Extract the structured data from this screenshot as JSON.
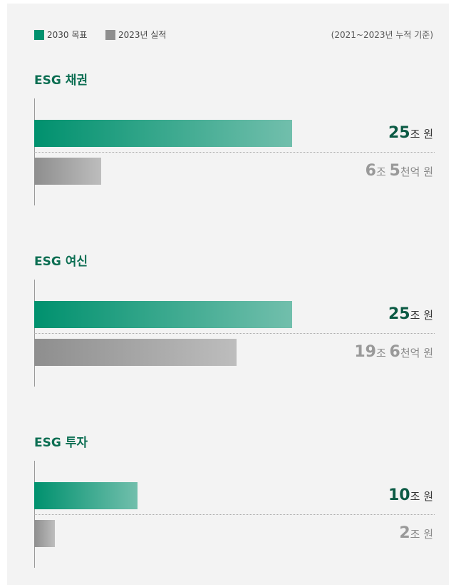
{
  "chart_data": {
    "type": "bar",
    "note": "(2021~2023년 누적 기준)",
    "categories": [
      "ESG 채권",
      "ESG 여신",
      "ESG 투자"
    ],
    "series": [
      {
        "name": "2030 목표",
        "color": "#00916e",
        "values": [
          25,
          25,
          10
        ],
        "value_labels": [
          "25조 원",
          "25조 원",
          "10조 원"
        ]
      },
      {
        "name": "2023년 실적",
        "color": "#8e8e8e",
        "values": [
          6.5,
          19.6,
          2
        ],
        "value_labels": [
          "6조 5천억 원",
          "19조 6천억 원",
          "2조 원"
        ]
      }
    ]
  }
}
